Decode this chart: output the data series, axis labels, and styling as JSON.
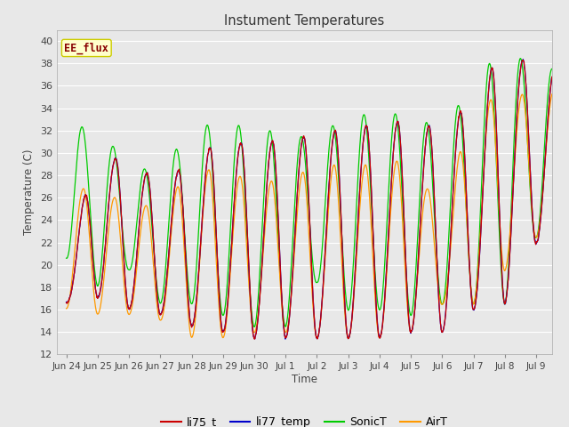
{
  "title": "Instument Temperatures",
  "ylabel": "Temperature (C)",
  "xlabel": "Time",
  "annotation": "EE_flux",
  "ylim": [
    12,
    41
  ],
  "yticks": [
    12,
    14,
    16,
    18,
    20,
    22,
    24,
    26,
    28,
    30,
    32,
    34,
    36,
    38,
    40
  ],
  "line_colors": {
    "li75_t": "#cc0000",
    "li77_temp": "#0000cc",
    "SonicT": "#00cc00",
    "AirT": "#ff9900"
  },
  "fig_bg_color": "#e8e8e8",
  "plot_bg_color": "#e8e8e8",
  "grid_color": "#ffffff",
  "x_tick_labels": [
    "Jun 24",
    "Jun 25",
    "Jun 26",
    "Jun 27",
    "Jun 28",
    "Jun 29",
    "Jun 30",
    "Jul 1",
    "Jul 2",
    "Jul 3",
    "Jul 4",
    "Jul 5",
    "Jul 6",
    "Jul 7",
    "Jul 8",
    "Jul 9"
  ],
  "annotation_bg": "#ffffcc",
  "annotation_border": "#cccc00",
  "annotation_text_color": "#880000",
  "tick_label_color": "#444444",
  "axis_label_color": "#444444",
  "title_color": "#333333",
  "spine_color": "#aaaaaa"
}
